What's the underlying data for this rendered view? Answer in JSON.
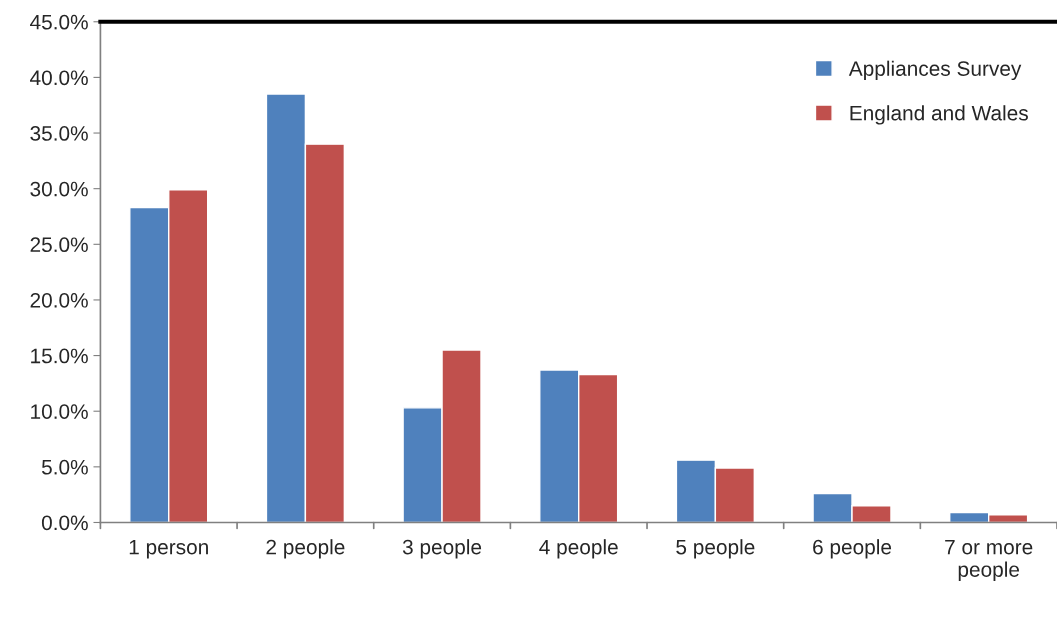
{
  "chart_data": {
    "type": "bar",
    "categories": [
      "1 person",
      "2 people",
      "3 people",
      "4 people",
      "5 people",
      "6 people",
      "7 or more\npeople"
    ],
    "series": [
      {
        "name": "Appliances Survey",
        "color": "#4f81bd",
        "values": [
          28.3,
          38.5,
          10.3,
          13.7,
          5.6,
          2.6,
          0.9
        ]
      },
      {
        "name": "England and Wales",
        "color": "#c0504d",
        "values": [
          29.9,
          34.0,
          15.5,
          13.3,
          4.9,
          1.5,
          0.7
        ]
      }
    ],
    "ylim": [
      0,
      45
    ],
    "yticks": [
      {
        "value": 0,
        "label": "0.0%"
      },
      {
        "value": 5,
        "label": "5.0%"
      },
      {
        "value": 10,
        "label": "10.0%"
      },
      {
        "value": 15,
        "label": "15.0%"
      },
      {
        "value": 20,
        "label": "20.0%"
      },
      {
        "value": 25,
        "label": "25.0%"
      },
      {
        "value": 30,
        "label": "30.0%"
      },
      {
        "value": 35,
        "label": "35.0%"
      },
      {
        "value": 40,
        "label": "40.0%"
      },
      {
        "value": 45,
        "label": "45.0%"
      }
    ],
    "grid": false,
    "legend": "top right"
  }
}
